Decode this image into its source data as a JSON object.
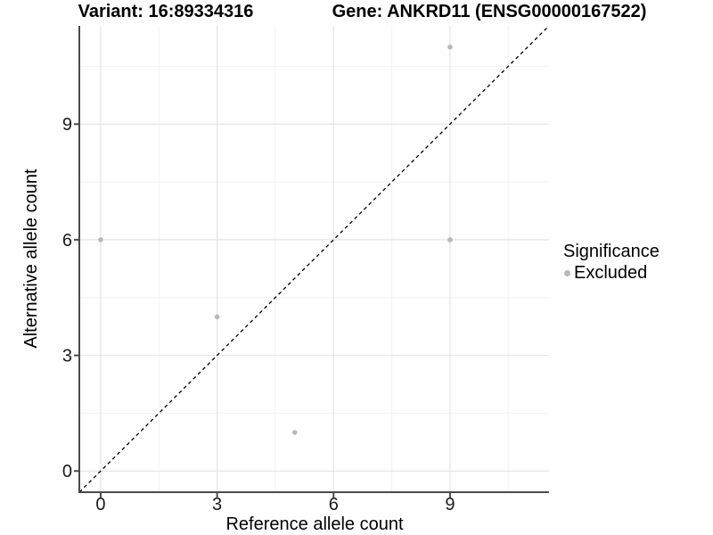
{
  "chart_data": {
    "type": "scatter",
    "titles": {
      "left": "Variant: 16:89334316",
      "right": "Gene: ANKRD11 (ENSG00000167522)"
    },
    "xlabel": "Reference allele count",
    "ylabel": "Alternative allele count",
    "xlim": [
      -0.55,
      11.55
    ],
    "ylim": [
      -0.55,
      11.55
    ],
    "x_ticks": [
      0,
      3,
      6,
      9
    ],
    "y_ticks": [
      0,
      3,
      6,
      9
    ],
    "x_minor_ticks": [
      1.5,
      4.5,
      7.5,
      10.5
    ],
    "y_minor_ticks": [
      1.5,
      4.5,
      7.5,
      10.5
    ],
    "grid": true,
    "series": [
      {
        "name": "Excluded",
        "marker": "circle",
        "color": "#b8b8b8",
        "points": [
          {
            "x": 0,
            "y": 6
          },
          {
            "x": 3,
            "y": 4
          },
          {
            "x": 5,
            "y": 1
          },
          {
            "x": 9,
            "y": 6
          },
          {
            "x": 9,
            "y": 11
          }
        ]
      }
    ],
    "reference_line": {
      "type": "identity",
      "slope": 1,
      "intercept": 0,
      "style": "dashed",
      "color": "#000000"
    },
    "legend": {
      "title": "Significance",
      "position": "right",
      "items": [
        {
          "label": "Excluded",
          "marker_color": "#b8b8b8"
        }
      ]
    },
    "colors": {
      "background": "#ffffff",
      "major_grid": "#e4e4e4",
      "minor_grid": "#f2f2f2",
      "axis_line": "#4a4a4a",
      "tick_mark": "#4a4a4a",
      "tick_label": "#1a1a1a",
      "point": "#b8b8b8",
      "dashed_line": "#000000"
    }
  }
}
